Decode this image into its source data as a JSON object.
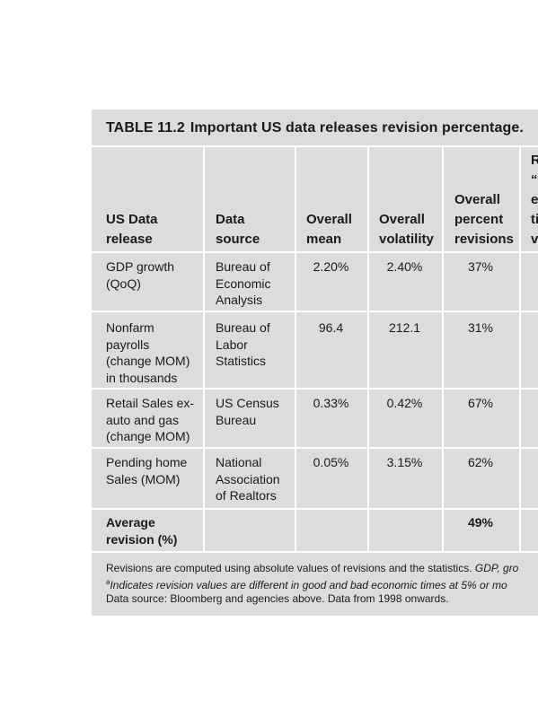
{
  "table": {
    "label": "TABLE 11.2",
    "title": "Important US data releases revision percentage.",
    "headers": [
      "US Data\nrelease",
      "Data\nsource",
      "Overall\nmean",
      "Overall\nvolatility",
      "Overall\npercent\nrevisions",
      "R\n“\ne\nti\nv"
    ],
    "rows": [
      {
        "release": "GDP growth\n(QoQ)",
        "source": "Bureau of\nEconomic\nAnalysis",
        "mean": "2.20%",
        "volatility": "2.40%",
        "revisions": "37%"
      },
      {
        "release": "Nonfarm\npayrolls\n(change MOM)\nin thousands",
        "source": "Bureau of\nLabor\nStatistics",
        "mean": "96.4",
        "volatility": "212.1",
        "revisions": "31%"
      },
      {
        "release": "Retail Sales ex-\nauto and gas\n(change MOM)",
        "source": "US Census\nBureau",
        "mean": "0.33%",
        "volatility": "0.42%",
        "revisions": "67%"
      },
      {
        "release": "Pending home\nSales (MOM)",
        "source": "National\nAssociation\nof Realtors",
        "mean": "0.05%",
        "volatility": "3.15%",
        "revisions": "62%"
      }
    ],
    "average": {
      "label": "Average\nrevision (%)",
      "revisions": "49%"
    },
    "notes": {
      "line1_plain": "Revisions are computed using absolute values of revisions and the statistics. ",
      "line1_italic": "GDP, gro",
      "line2_sup": "a",
      "line2_italic": "Indicates revision values are different in good and bad economic times at 5% or mo",
      "line3": "Data source: Bloomberg and agencies above. Data from 1998 onwards."
    }
  }
}
